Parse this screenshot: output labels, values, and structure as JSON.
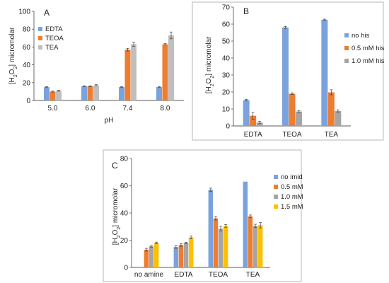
{
  "chart_data": [
    {
      "panel": "A",
      "type": "bar",
      "categories": [
        "5.0",
        "6.0",
        "7.4",
        "8.0"
      ],
      "xlabel": "pH",
      "ylabel_parts": [
        "[H",
        "2",
        "O",
        "2",
        "] micromolar"
      ],
      "ylim": [
        0,
        100
      ],
      "yticks": [
        "0",
        "20",
        "40",
        "60",
        "80",
        "100"
      ],
      "legend_position": "top-left",
      "series": [
        {
          "name": "EDTA",
          "color": "#7aa3dd",
          "values": [
            15,
            16,
            15,
            15
          ],
          "errors": [
            0.6,
            0.5,
            0.5,
            0.5
          ]
        },
        {
          "name": "TEOA",
          "color": "#ed7d31",
          "values": [
            10,
            16,
            57,
            63
          ],
          "errors": [
            0.5,
            0.5,
            1.5,
            0.8
          ]
        },
        {
          "name": "TEA",
          "color": "#bfbfbf",
          "values": [
            11,
            17,
            63,
            73
          ],
          "errors": [
            0.5,
            0.8,
            2.2,
            3.8
          ]
        }
      ]
    },
    {
      "panel": "B",
      "type": "bar",
      "categories": [
        "EDTA",
        "TEOA",
        "TEA"
      ],
      "xlabel": "",
      "ylabel_parts": [
        "[H",
        "2",
        "O",
        "2",
        "] micromolar"
      ],
      "ylim": [
        0,
        70
      ],
      "yticks": [
        "0",
        "10",
        "20",
        "30",
        "40",
        "50",
        "60",
        "70"
      ],
      "legend_position": "right",
      "series": [
        {
          "name": "no his",
          "color": "#7aa3dd",
          "values": [
            15.2,
            58,
            62.6
          ],
          "errors": [
            0.5,
            0.6,
            0.3
          ]
        },
        {
          "name": "0.5 mM his",
          "color": "#ed7d31",
          "values": [
            6,
            19,
            19.8
          ],
          "errors": [
            2.0,
            0.5,
            1.5
          ]
        },
        {
          "name": "1.0 mM his",
          "color": "#a5a5a5",
          "values": [
            2,
            8.5,
            8.8
          ],
          "errors": [
            0.7,
            0.5,
            0.7
          ]
        }
      ]
    },
    {
      "panel": "C",
      "type": "bar",
      "categories": [
        "no amine",
        "EDTA",
        "TEOA",
        "TEA"
      ],
      "xlabel": "",
      "ylabel_parts": [
        "[H",
        "2",
        "O",
        "2",
        "] micromolar"
      ],
      "ylim": [
        0,
        80
      ],
      "yticks": [
        "0",
        "20",
        "40",
        "60",
        "80"
      ],
      "legend_position": "right",
      "series": [
        {
          "name": "no imid",
          "color": "#7aa3dd",
          "values": [
            null,
            15,
            57,
            63
          ],
          "errors": [
            0,
            1.0,
            1.2,
            0
          ]
        },
        {
          "name": "0.5 mM",
          "color": "#ed7d31",
          "values": [
            13,
            16.5,
            36,
            37.5
          ],
          "errors": [
            1.0,
            1.0,
            1.2,
            1.0
          ]
        },
        {
          "name": "1.0 mM",
          "color": "#a5a5a5",
          "values": [
            15.5,
            18,
            28.5,
            30.5
          ],
          "errors": [
            0.6,
            0.5,
            1.7,
            1.2
          ]
        },
        {
          "name": "1.5 mM",
          "color": "#ffc000",
          "values": [
            18,
            22,
            30.5,
            31
          ],
          "errors": [
            0.6,
            1.0,
            1.0,
            2.0
          ]
        }
      ]
    }
  ]
}
